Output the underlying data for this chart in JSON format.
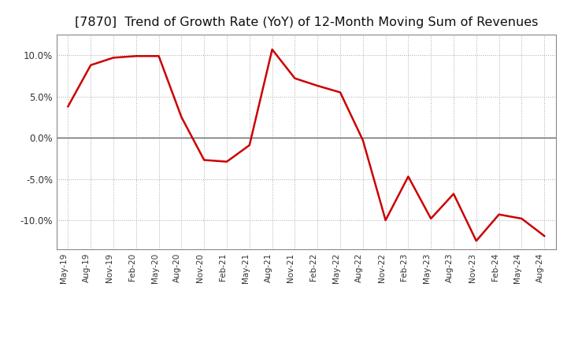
{
  "title": "[7870]  Trend of Growth Rate (YoY) of 12-Month Moving Sum of Revenues",
  "title_fontsize": 11.5,
  "line_color": "#cc0000",
  "line_width": 1.8,
  "background_color": "#ffffff",
  "grid_color": "#aaaaaa",
  "ylim": [
    -0.135,
    0.125
  ],
  "yticks": [
    -0.1,
    -0.05,
    0.0,
    0.05,
    0.1
  ],
  "x_labels": [
    "May-19",
    "Aug-19",
    "Nov-19",
    "Feb-20",
    "May-20",
    "Aug-20",
    "Nov-20",
    "Feb-21",
    "May-21",
    "Aug-21",
    "Nov-21",
    "Feb-22",
    "May-22",
    "Aug-22",
    "Nov-22",
    "Feb-23",
    "May-23",
    "Aug-23",
    "Nov-23",
    "Feb-24",
    "May-24",
    "Aug-24"
  ],
  "y_values": [
    0.038,
    0.088,
    0.097,
    0.099,
    0.099,
    0.025,
    -0.027,
    -0.029,
    -0.009,
    0.107,
    0.072,
    0.063,
    0.055,
    -0.003,
    -0.1,
    -0.047,
    -0.098,
    -0.068,
    -0.125,
    -0.093,
    -0.098,
    -0.119
  ]
}
